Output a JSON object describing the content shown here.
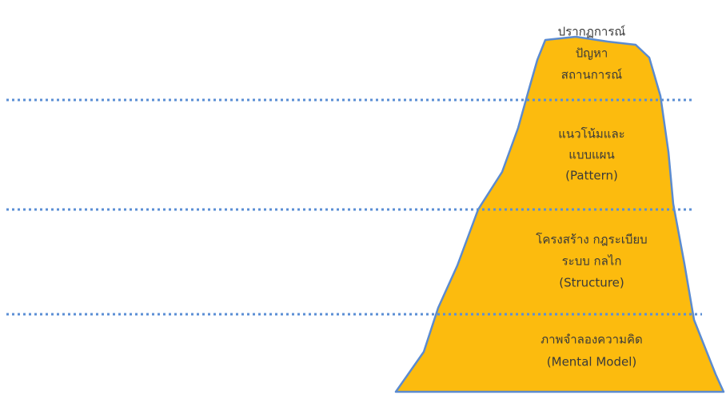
{
  "levels": [
    {
      "lines": [
        "ปรากฏการณ์",
        "ปัญหา",
        "สถานการณ์"
      ]
    },
    {
      "lines": [
        "แนวโน้มและ",
        "แบบแผน",
        "(Pattern)"
      ]
    },
    {
      "lines": [
        "โครงสร้าง กฎระเบียบ",
        "ระบบ กลไก",
        "(Structure)"
      ]
    },
    {
      "lines": [
        "ภาพจำลองความคิด",
        "(Mental Model)"
      ]
    }
  ]
}
